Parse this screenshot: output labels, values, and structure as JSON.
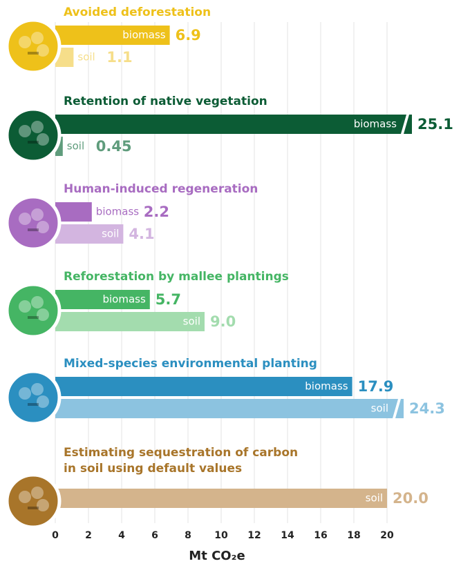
{
  "chart_data": {
    "type": "bar",
    "orientation": "horizontal",
    "xlabel": "Mt CO₂e",
    "xlim": [
      0,
      20
    ],
    "xticks": [
      0,
      2,
      4,
      6,
      8,
      10,
      12,
      14,
      16,
      18,
      20
    ],
    "grid": true,
    "axis_break": true,
    "groups": [
      {
        "title": "Avoided deforestation",
        "color": "#eec11a",
        "bars": [
          {
            "name": "biomass",
            "color": "#eec11a",
            "value": 6.9
          },
          {
            "name": "soil",
            "color": "#f6de8a",
            "value": 1.1
          }
        ]
      },
      {
        "title": "Retention of native vegetation",
        "color": "#0c5c35",
        "bars": [
          {
            "name": "biomass",
            "color": "#0c5c35",
            "value": 25.1
          },
          {
            "name": "soil",
            "color": "#5f9c7c",
            "value": 0.45
          }
        ]
      },
      {
        "title": "Human-induced regeneration",
        "color": "#a86cc1",
        "bars": [
          {
            "name": "biomass",
            "color": "#a86cc1",
            "value": 2.2
          },
          {
            "name": "soil",
            "color": "#d3b5e0",
            "value": 4.1
          }
        ]
      },
      {
        "title": "Reforestation by mallee plantings",
        "color": "#45b564",
        "bars": [
          {
            "name": "biomass",
            "color": "#45b564",
            "value": 5.7
          },
          {
            "name": "soil",
            "color": "#a3dcae",
            "value": 9,
            "value_label": "9.0"
          }
        ]
      },
      {
        "title": "Mixed-species environmental planting",
        "color": "#2b8fc0",
        "bars": [
          {
            "name": "biomass",
            "color": "#2b8fc0",
            "value": 17.9
          },
          {
            "name": "soil",
            "color": "#8cc3e0",
            "value": 24.3
          }
        ]
      },
      {
        "title": "Estimating sequestration of carbon\nin soil using default values",
        "color": "#a8752a",
        "bars": [
          {
            "name": "soil",
            "color": "#d4b48c",
            "value": 20,
            "value_label": "20.0"
          }
        ]
      }
    ]
  }
}
